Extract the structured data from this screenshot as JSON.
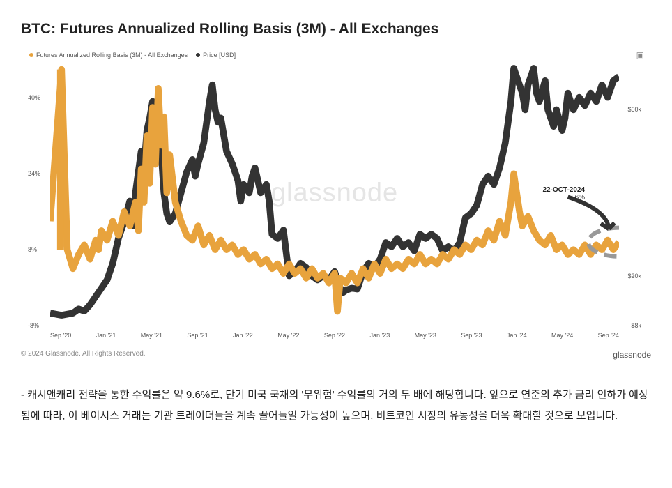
{
  "title": "BTC: Futures Annualized Rolling Basis (3M) - All Exchanges",
  "legend": {
    "s1_label": "Futures Annualized Rolling Basis (3M) - All Exchanges",
    "s1_color": "#e8a33d",
    "s2_label": "Price [USD]",
    "s2_color": "#333333"
  },
  "watermark": "glassnode",
  "copyright": "© 2024 Glassnode. All Rights Reserved.",
  "brand": "glassnode",
  "annotation": {
    "date": "22-OCT-2024",
    "value": "9.6%"
  },
  "chart": {
    "type": "dual-axis-line",
    "aspect": "900x420",
    "background_color": "#ffffff",
    "grid_color": "#eeeeee",
    "axis_color": "#cccccc",
    "label_fontsize": 9,
    "label_color": "#555555",
    "watermark_color": "#e5e5e5",
    "watermark_fontsize": 38,
    "x_labels": [
      "Sep '20",
      "Jan '21",
      "May '21",
      "Sep '21",
      "Jan '22",
      "May '22",
      "Sep '22",
      "Jan '23",
      "May '23",
      "Sep '23",
      "Jan '24",
      "May '24",
      "Sep '24"
    ],
    "y_left": {
      "min": -8,
      "max": 48,
      "ticks": [
        -8,
        8,
        24,
        40
      ],
      "fmt": "%"
    },
    "y_right": {
      "min": 8000,
      "max": 72000,
      "ticks": [
        8000,
        20000,
        60000
      ],
      "labels": [
        "$8k",
        "$20k",
        "$60k"
      ]
    },
    "line_width": 1.2,
    "annotation_circle": {
      "color": "#999999",
      "dash": "3 2",
      "r": 9
    },
    "annotation_arrow_color": "#333333",
    "series_basis": {
      "color": "#e8a33d",
      "data": [
        [
          0.0,
          14
        ],
        [
          0.02,
          46
        ],
        [
          0.03,
          8
        ],
        [
          0.04,
          4
        ],
        [
          0.05,
          7
        ],
        [
          0.06,
          9
        ],
        [
          0.07,
          6
        ],
        [
          0.08,
          10
        ],
        [
          0.085,
          8
        ],
        [
          0.09,
          12
        ],
        [
          0.1,
          10
        ],
        [
          0.11,
          14
        ],
        [
          0.12,
          11
        ],
        [
          0.13,
          16
        ],
        [
          0.14,
          13
        ],
        [
          0.15,
          18
        ],
        [
          0.155,
          12
        ],
        [
          0.16,
          25
        ],
        [
          0.165,
          18
        ],
        [
          0.17,
          32
        ],
        [
          0.175,
          22
        ],
        [
          0.18,
          38
        ],
        [
          0.185,
          26
        ],
        [
          0.19,
          42
        ],
        [
          0.195,
          30
        ],
        [
          0.2,
          36
        ],
        [
          0.205,
          20
        ],
        [
          0.21,
          28
        ],
        [
          0.22,
          18
        ],
        [
          0.23,
          14
        ],
        [
          0.24,
          11
        ],
        [
          0.25,
          10
        ],
        [
          0.26,
          13
        ],
        [
          0.27,
          9
        ],
        [
          0.28,
          11
        ],
        [
          0.29,
          8
        ],
        [
          0.3,
          10
        ],
        [
          0.31,
          8
        ],
        [
          0.32,
          9
        ],
        [
          0.33,
          7
        ],
        [
          0.34,
          8
        ],
        [
          0.35,
          6
        ],
        [
          0.36,
          7
        ],
        [
          0.37,
          5
        ],
        [
          0.38,
          6
        ],
        [
          0.39,
          4
        ],
        [
          0.4,
          5
        ],
        [
          0.41,
          3
        ],
        [
          0.42,
          5
        ],
        [
          0.43,
          3
        ],
        [
          0.44,
          4
        ],
        [
          0.45,
          2
        ],
        [
          0.46,
          4
        ],
        [
          0.47,
          2
        ],
        [
          0.48,
          3
        ],
        [
          0.49,
          1
        ],
        [
          0.5,
          3
        ],
        [
          0.505,
          -5
        ],
        [
          0.51,
          2
        ],
        [
          0.52,
          1
        ],
        [
          0.53,
          3
        ],
        [
          0.54,
          1
        ],
        [
          0.55,
          4
        ],
        [
          0.56,
          2
        ],
        [
          0.57,
          5
        ],
        [
          0.58,
          3
        ],
        [
          0.59,
          6
        ],
        [
          0.6,
          4
        ],
        [
          0.61,
          5
        ],
        [
          0.62,
          4
        ],
        [
          0.63,
          6
        ],
        [
          0.64,
          5
        ],
        [
          0.65,
          7
        ],
        [
          0.66,
          5
        ],
        [
          0.67,
          6
        ],
        [
          0.68,
          5
        ],
        [
          0.69,
          7
        ],
        [
          0.7,
          6
        ],
        [
          0.71,
          8
        ],
        [
          0.72,
          7
        ],
        [
          0.73,
          9
        ],
        [
          0.74,
          8
        ],
        [
          0.75,
          10
        ],
        [
          0.76,
          9
        ],
        [
          0.77,
          12
        ],
        [
          0.78,
          10
        ],
        [
          0.79,
          14
        ],
        [
          0.8,
          11
        ],
        [
          0.81,
          18
        ],
        [
          0.815,
          24
        ],
        [
          0.82,
          20
        ],
        [
          0.825,
          16
        ],
        [
          0.83,
          13
        ],
        [
          0.84,
          15
        ],
        [
          0.85,
          12
        ],
        [
          0.86,
          10
        ],
        [
          0.87,
          9
        ],
        [
          0.88,
          11
        ],
        [
          0.89,
          8
        ],
        [
          0.9,
          9
        ],
        [
          0.91,
          7
        ],
        [
          0.92,
          8
        ],
        [
          0.93,
          7
        ],
        [
          0.94,
          9
        ],
        [
          0.95,
          7
        ],
        [
          0.96,
          9
        ],
        [
          0.97,
          8
        ],
        [
          0.98,
          10
        ],
        [
          0.99,
          8
        ],
        [
          1.0,
          9.6
        ]
      ]
    },
    "series_price": {
      "color": "#333333",
      "data": [
        [
          0.0,
          11000
        ],
        [
          0.02,
          10500
        ],
        [
          0.04,
          11000
        ],
        [
          0.05,
          12000
        ],
        [
          0.06,
          11500
        ],
        [
          0.07,
          13000
        ],
        [
          0.08,
          15000
        ],
        [
          0.09,
          17000
        ],
        [
          0.1,
          19000
        ],
        [
          0.11,
          23000
        ],
        [
          0.12,
          29000
        ],
        [
          0.13,
          33000
        ],
        [
          0.14,
          38000
        ],
        [
          0.145,
          32000
        ],
        [
          0.15,
          40000
        ],
        [
          0.155,
          45000
        ],
        [
          0.16,
          50000
        ],
        [
          0.165,
          46000
        ],
        [
          0.17,
          55000
        ],
        [
          0.175,
          58000
        ],
        [
          0.18,
          62000
        ],
        [
          0.185,
          55000
        ],
        [
          0.19,
          58000
        ],
        [
          0.195,
          50000
        ],
        [
          0.2,
          40000
        ],
        [
          0.205,
          35000
        ],
        [
          0.21,
          33000
        ],
        [
          0.22,
          35000
        ],
        [
          0.23,
          40000
        ],
        [
          0.24,
          45000
        ],
        [
          0.25,
          48000
        ],
        [
          0.255,
          44000
        ],
        [
          0.26,
          47000
        ],
        [
          0.27,
          52000
        ],
        [
          0.28,
          62000
        ],
        [
          0.285,
          66000
        ],
        [
          0.29,
          60000
        ],
        [
          0.295,
          57000
        ],
        [
          0.3,
          58000
        ],
        [
          0.31,
          50000
        ],
        [
          0.32,
          47000
        ],
        [
          0.33,
          43000
        ],
        [
          0.335,
          38000
        ],
        [
          0.34,
          42000
        ],
        [
          0.35,
          40000
        ],
        [
          0.355,
          44000
        ],
        [
          0.36,
          46000
        ],
        [
          0.37,
          40000
        ],
        [
          0.38,
          42000
        ],
        [
          0.385,
          38000
        ],
        [
          0.39,
          30000
        ],
        [
          0.4,
          29000
        ],
        [
          0.41,
          31000
        ],
        [
          0.42,
          20000
        ],
        [
          0.43,
          21000
        ],
        [
          0.44,
          23000
        ],
        [
          0.45,
          22000
        ],
        [
          0.46,
          20000
        ],
        [
          0.47,
          19000
        ],
        [
          0.48,
          20000
        ],
        [
          0.49,
          19000
        ],
        [
          0.5,
          21000
        ],
        [
          0.51,
          17000
        ],
        [
          0.515,
          16000
        ],
        [
          0.52,
          16500
        ],
        [
          0.53,
          17000
        ],
        [
          0.54,
          16800
        ],
        [
          0.55,
          21000
        ],
        [
          0.56,
          23000
        ],
        [
          0.57,
          22000
        ],
        [
          0.58,
          24000
        ],
        [
          0.59,
          28000
        ],
        [
          0.6,
          27000
        ],
        [
          0.61,
          29000
        ],
        [
          0.62,
          27000
        ],
        [
          0.63,
          28000
        ],
        [
          0.64,
          26000
        ],
        [
          0.65,
          30000
        ],
        [
          0.66,
          29000
        ],
        [
          0.67,
          30000
        ],
        [
          0.68,
          29000
        ],
        [
          0.69,
          26000
        ],
        [
          0.7,
          27000
        ],
        [
          0.71,
          26000
        ],
        [
          0.72,
          28000
        ],
        [
          0.73,
          34000
        ],
        [
          0.74,
          35000
        ],
        [
          0.75,
          37000
        ],
        [
          0.76,
          42000
        ],
        [
          0.77,
          44000
        ],
        [
          0.78,
          42000
        ],
        [
          0.79,
          46000
        ],
        [
          0.8,
          52000
        ],
        [
          0.81,
          62000
        ],
        [
          0.815,
          70000
        ],
        [
          0.82,
          68000
        ],
        [
          0.83,
          64000
        ],
        [
          0.835,
          60000
        ],
        [
          0.84,
          66000
        ],
        [
          0.85,
          70000
        ],
        [
          0.855,
          64000
        ],
        [
          0.86,
          62000
        ],
        [
          0.87,
          67000
        ],
        [
          0.875,
          60000
        ],
        [
          0.88,
          58000
        ],
        [
          0.885,
          56000
        ],
        [
          0.89,
          60000
        ],
        [
          0.9,
          55000
        ],
        [
          0.905,
          58000
        ],
        [
          0.91,
          64000
        ],
        [
          0.92,
          60000
        ],
        [
          0.93,
          63000
        ],
        [
          0.94,
          61000
        ],
        [
          0.95,
          64000
        ],
        [
          0.96,
          62000
        ],
        [
          0.97,
          66000
        ],
        [
          0.98,
          63000
        ],
        [
          0.99,
          67000
        ],
        [
          1.0,
          68000
        ]
      ]
    }
  },
  "commentary": "- 캐시앤캐리 전략을 통한 수익률은 약 9.6%로, 단기 미국 국채의 '무위험' 수익률의 거의 두 배에 해당합니다. 앞으로 연준의 추가 금리 인하가 예상됨에 따라, 이 베이시스 거래는 기관 트레이더들을 계속 끌어들일 가능성이 높으며, 비트코인 시장의 유동성을 더욱 확대할 것으로 보입니다."
}
